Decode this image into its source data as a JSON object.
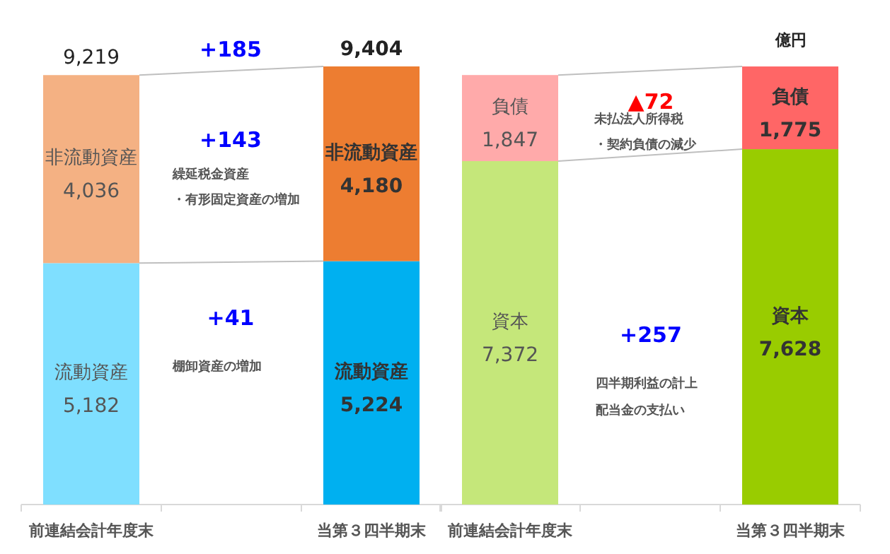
{
  "chart_data": [
    {
      "type": "bar",
      "stacked": true,
      "categories": [
        "前連結会計年度末",
        null,
        "当第３四半期末"
      ],
      "series": [
        {
          "name": "流動資産",
          "colors": [
            "#7fdfff",
            null,
            "#00b0f0"
          ],
          "values": [
            5182,
            null,
            5224
          ],
          "value_labels": [
            "5,182",
            null,
            "5,224"
          ]
        },
        {
          "name": "非流動資産",
          "colors": [
            "#f4b183",
            null,
            "#ed7d31"
          ],
          "values": [
            4036,
            null,
            4180
          ],
          "value_labels": [
            "4,036",
            null,
            "4,180"
          ]
        }
      ],
      "totals": [
        "9,219",
        null,
        "9,404"
      ],
      "annotations": [
        "+185",
        "+143",
        "繰延税金資産",
        "・有形固定資産の増加",
        "+41",
        "棚卸資産の増加"
      ]
    },
    {
      "type": "bar",
      "stacked": true,
      "categories": [
        "前連結会計年度末",
        null,
        "当第３四半期末"
      ],
      "series": [
        {
          "name": "資本",
          "colors": [
            "#c5e77a",
            null,
            "#99cc00"
          ],
          "values": [
            7372,
            null,
            7628
          ],
          "value_labels": [
            "7,372",
            null,
            "7,628"
          ]
        },
        {
          "name": "負債",
          "colors": [
            "#ffaaaa",
            null,
            "#ff6666"
          ],
          "values": [
            1847,
            null,
            1775
          ],
          "value_labels": [
            "1,847",
            null,
            "1,775"
          ]
        }
      ],
      "annotations": [
        "▲72",
        "未払法人所得税",
        "・契約負債の減少",
        "+257",
        "四半期利益の計上",
        "配当金の支払い",
        "億円"
      ]
    }
  ]
}
